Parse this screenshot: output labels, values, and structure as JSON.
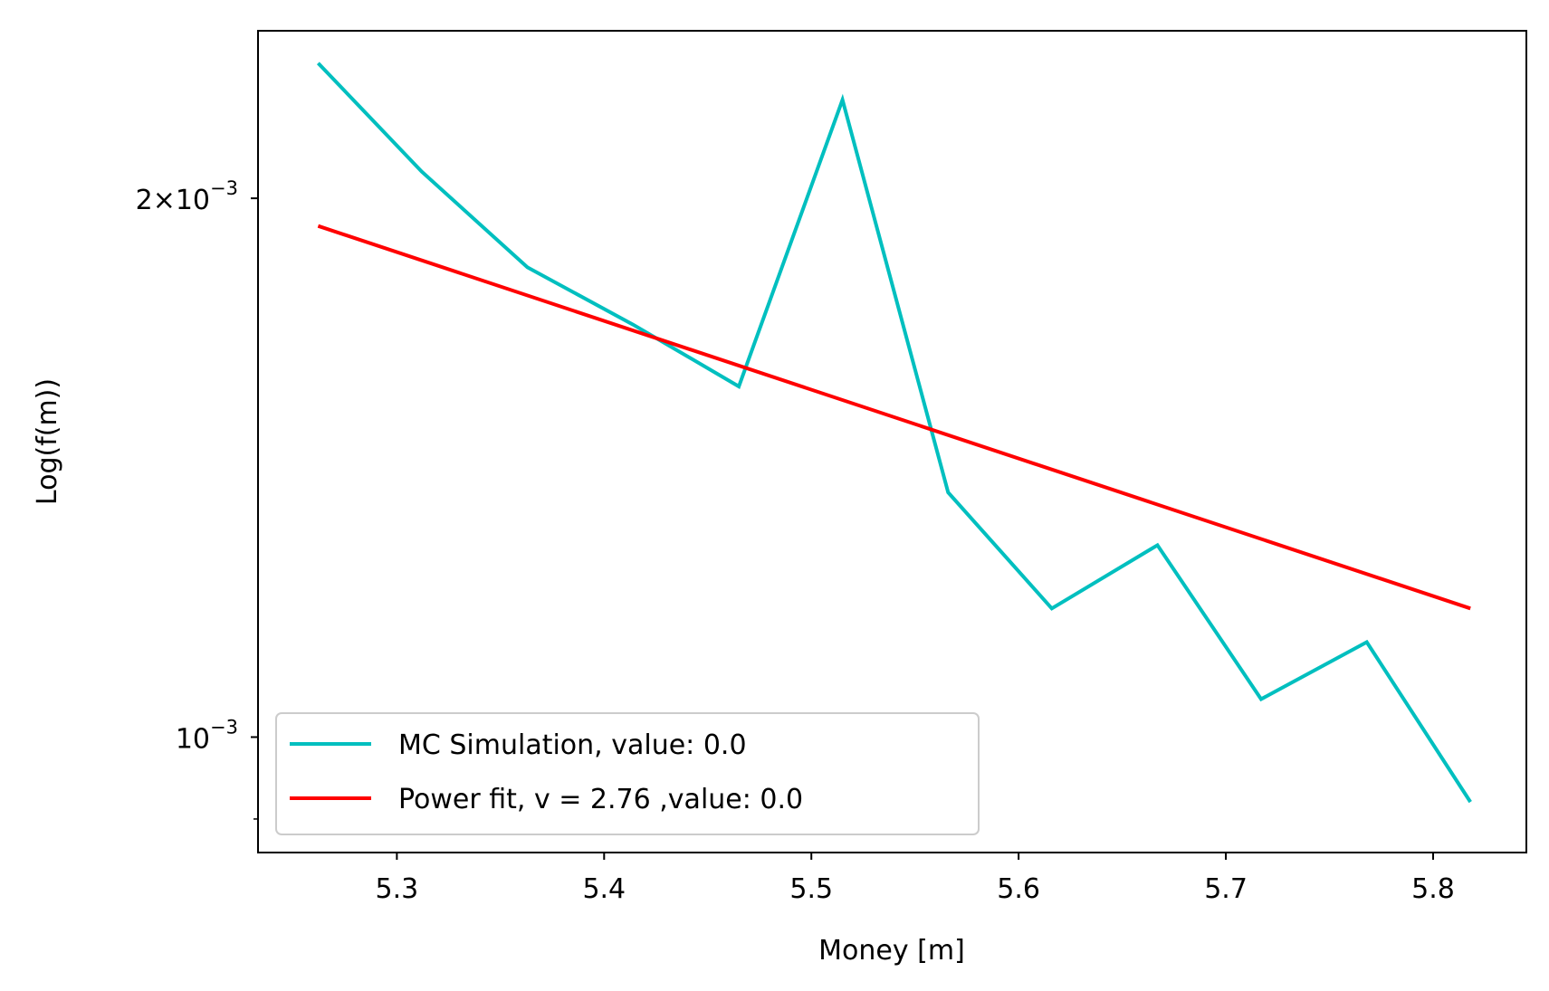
{
  "chart_data": {
    "type": "line",
    "title": "",
    "xlabel": "Money [m]",
    "ylabel": "Log(f(m))",
    "yscale": "log",
    "xlim": [
      5.233,
      5.845
    ],
    "ylim": [
      0.000862,
      0.002481
    ],
    "grid": false,
    "legend_position": "lower-left",
    "x_ticks": [
      {
        "value": 5.3,
        "label": "5.3"
      },
      {
        "value": 5.4,
        "label": "5.4"
      },
      {
        "value": 5.5,
        "label": "5.5"
      },
      {
        "value": 5.6,
        "label": "5.6"
      },
      {
        "value": 5.7,
        "label": "5.7"
      },
      {
        "value": 5.8,
        "label": "5.8"
      }
    ],
    "y_ticks": [
      {
        "value": 0.002,
        "base": "2×10",
        "exp": "−3"
      },
      {
        "value": 0.001,
        "base": "10",
        "exp": "−3"
      }
    ],
    "y_minor_ticks": [
      0.0009
    ],
    "series": [
      {
        "name": "MC Simulation, value: 0.0",
        "color": "#00bfbf",
        "x": [
          5.262,
          5.312,
          5.363,
          5.414,
          5.465,
          5.515,
          5.566,
          5.616,
          5.667,
          5.717,
          5.768,
          5.818
        ],
        "y": [
          0.00238,
          0.00207,
          0.00183,
          0.0017,
          0.00157,
          0.00227,
          0.00137,
          0.00118,
          0.00128,
          0.00105,
          0.00113,
          0.00092
        ]
      },
      {
        "name": "Power fit, v = 2.76 ,value: 0.0",
        "color": "#ff0000",
        "x": [
          5.262,
          5.818
        ],
        "y": [
          0.00193,
          0.00118
        ],
        "power_exponent": 2.76
      }
    ]
  }
}
